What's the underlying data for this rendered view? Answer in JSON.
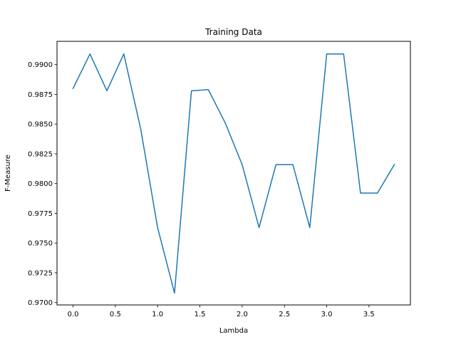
{
  "chart_data": {
    "type": "line",
    "title": "Training Data",
    "xlabel": "Lambda",
    "ylabel": "F-Measure",
    "xlim": [
      -0.19,
      3.99
    ],
    "ylim": [
      0.9698,
      0.99196
    ],
    "x_ticks": [
      0.0,
      0.5,
      1.0,
      1.5,
      2.0,
      2.5,
      3.0,
      3.5
    ],
    "x_tick_labels": [
      "0.0",
      "0.5",
      "1.0",
      "1.5",
      "2.0",
      "2.5",
      "3.0",
      "3.5"
    ],
    "y_ticks": [
      0.97,
      0.9725,
      0.975,
      0.9775,
      0.98,
      0.9825,
      0.985,
      0.9875,
      0.99
    ],
    "y_tick_labels": [
      "0.9700",
      "0.9725",
      "0.9750",
      "0.9775",
      "0.9800",
      "0.9825",
      "0.9850",
      "0.9875",
      "0.9900"
    ],
    "grid": false,
    "legend": "none",
    "series": [
      {
        "color": "#1f77b4",
        "x": [
          0.0,
          0.2,
          0.4,
          0.6,
          0.8,
          1.0,
          1.2,
          1.4,
          1.6,
          1.8,
          2.0,
          2.2,
          2.4,
          2.6,
          2.8,
          3.0,
          3.2,
          3.4,
          3.6,
          3.8
        ],
        "y": [
          0.988,
          0.9909,
          0.9878,
          0.9909,
          0.9846,
          0.9763,
          0.9708,
          0.9878,
          0.9879,
          0.9851,
          0.9816,
          0.9763,
          0.9816,
          0.9816,
          0.9763,
          0.9909,
          0.9909,
          0.9792,
          0.9792,
          0.9816
        ]
      }
    ]
  }
}
